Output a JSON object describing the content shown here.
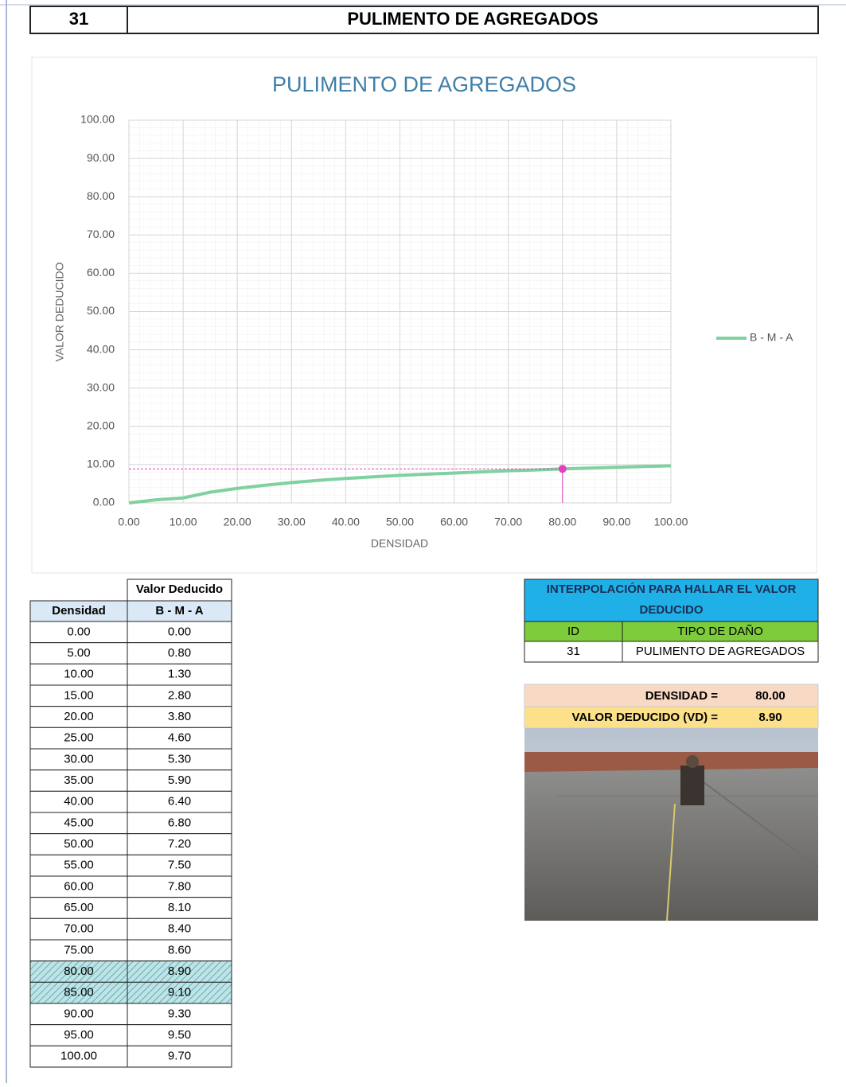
{
  "header": {
    "id": "31",
    "title": "PULIMENTO DE AGREGADOS"
  },
  "chart_data": {
    "type": "line",
    "title": "PULIMENTO  DE AGREGADOS",
    "xlabel": "DENSIDAD",
    "ylabel": "VALOR DEDUCIDO",
    "x": [
      0,
      5,
      10,
      15,
      20,
      25,
      30,
      35,
      40,
      45,
      50,
      55,
      60,
      65,
      70,
      75,
      80,
      85,
      90,
      95,
      100
    ],
    "series": [
      {
        "name": "B - M - A",
        "color": "#7fd1a0",
        "values": [
          0,
          0.8,
          1.3,
          2.8,
          3.8,
          4.6,
          5.3,
          5.9,
          6.4,
          6.8,
          7.2,
          7.5,
          7.8,
          8.1,
          8.4,
          8.6,
          8.9,
          9.1,
          9.3,
          9.5,
          9.7
        ]
      }
    ],
    "xlim": [
      0,
      100
    ],
    "ylim": [
      0,
      100
    ],
    "xticks": [
      {
        "value": 0,
        "label": "0.00"
      },
      {
        "value": 10,
        "label": "10.00"
      },
      {
        "value": 20,
        "label": "20.00"
      },
      {
        "value": 30,
        "label": "30.00"
      },
      {
        "value": 40,
        "label": "40.00"
      },
      {
        "value": 50,
        "label": "50.00"
      },
      {
        "value": 60,
        "label": "60.00"
      },
      {
        "value": 70,
        "label": "70.00"
      },
      {
        "value": 80,
        "label": "80.00"
      },
      {
        "value": 90,
        "label": "90.00"
      },
      {
        "value": 100,
        "label": "100.00"
      }
    ],
    "yticks": [
      {
        "value": 0,
        "label": "0.00"
      },
      {
        "value": 10,
        "label": "10.00"
      },
      {
        "value": 20,
        "label": "20.00"
      },
      {
        "value": 30,
        "label": "30.00"
      },
      {
        "value": 40,
        "label": "40.00"
      },
      {
        "value": 50,
        "label": "50.00"
      },
      {
        "value": 60,
        "label": "60.00"
      },
      {
        "value": 70,
        "label": "70.00"
      },
      {
        "value": 80,
        "label": "80.00"
      },
      {
        "value": 90,
        "label": "90.00"
      },
      {
        "value": 100,
        "label": "100.00"
      }
    ],
    "grid": true,
    "legend": "right",
    "marker": {
      "x": 80,
      "y": 8.9,
      "color": "#e83fbf"
    }
  },
  "table": {
    "group_header": "Valor Deducido",
    "columns": [
      "Densidad",
      "B - M - A"
    ],
    "rows": [
      [
        "0.00",
        "0.00"
      ],
      [
        "5.00",
        "0.80"
      ],
      [
        "10.00",
        "1.30"
      ],
      [
        "15.00",
        "2.80"
      ],
      [
        "20.00",
        "3.80"
      ],
      [
        "25.00",
        "4.60"
      ],
      [
        "30.00",
        "5.30"
      ],
      [
        "35.00",
        "5.90"
      ],
      [
        "40.00",
        "6.40"
      ],
      [
        "45.00",
        "6.80"
      ],
      [
        "50.00",
        "7.20"
      ],
      [
        "55.00",
        "7.50"
      ],
      [
        "60.00",
        "7.80"
      ],
      [
        "65.00",
        "8.10"
      ],
      [
        "70.00",
        "8.40"
      ],
      [
        "75.00",
        "8.60"
      ],
      [
        "80.00",
        "8.90"
      ],
      [
        "85.00",
        "9.10"
      ],
      [
        "90.00",
        "9.30"
      ],
      [
        "95.00",
        "9.50"
      ],
      [
        "100.00",
        "9.70"
      ]
    ],
    "highlight_rows": [
      16,
      17
    ]
  },
  "interpolation": {
    "title": "INTERPOLACIÓN PARA HALLAR EL VALOR DEDUCIDO",
    "columns": [
      "ID",
      "TIPO DE DAÑO"
    ],
    "row": [
      "31",
      "PULIMENTO DE AGREGADOS"
    ],
    "density_label": "DENSIDAD =",
    "density": "80.00",
    "vd_label": "VALOR DEDUCIDO (VD) =",
    "vd": "8.90"
  }
}
